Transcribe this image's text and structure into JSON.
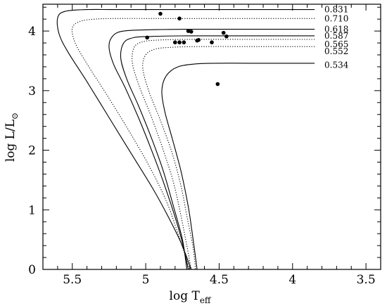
{
  "chart_data": {
    "type": "line",
    "xlabel": {
      "main": "log T",
      "sub": "eff"
    },
    "ylabel": {
      "main": "log L/L",
      "sub": "⊙"
    },
    "x_reversed": true,
    "xlim": [
      5.7,
      3.4
    ],
    "ylim": [
      0,
      4.45
    ],
    "x_ticks": [
      {
        "value": 5.5,
        "label": "5.5"
      },
      {
        "value": 5.0,
        "label": "5"
      },
      {
        "value": 4.5,
        "label": "4.5"
      },
      {
        "value": 4.0,
        "label": "4"
      },
      {
        "value": 3.5,
        "label": "3.5"
      }
    ],
    "y_ticks": [
      {
        "value": 0,
        "label": "0"
      },
      {
        "value": 1,
        "label": "1"
      },
      {
        "value": 2,
        "label": "2"
      },
      {
        "value": 3,
        "label": "3"
      },
      {
        "value": 4,
        "label": "4"
      }
    ],
    "series": [
      {
        "name": "0.831",
        "style": "solid",
        "points": [
          [
            3.85,
            4.36
          ],
          [
            4.3,
            4.36
          ],
          [
            4.8,
            4.36
          ],
          [
            5.2,
            4.36
          ],
          [
            5.4,
            4.36
          ],
          [
            5.55,
            4.33
          ],
          [
            5.6,
            4.22
          ],
          [
            5.59,
            3.95
          ],
          [
            5.53,
            3.65
          ],
          [
            5.4,
            3.15
          ],
          [
            5.25,
            2.55
          ],
          [
            5.1,
            1.95
          ],
          [
            4.95,
            1.35
          ],
          [
            4.85,
            0.9
          ],
          [
            4.76,
            0.45
          ],
          [
            4.69,
            0.0
          ]
        ]
      },
      {
        "name": "0.710",
        "style": "dotted",
        "points": [
          [
            3.85,
            4.21
          ],
          [
            4.3,
            4.21
          ],
          [
            4.8,
            4.21
          ],
          [
            5.2,
            4.21
          ],
          [
            5.35,
            4.2
          ],
          [
            5.45,
            4.16
          ],
          [
            5.5,
            4.05
          ],
          [
            5.48,
            3.8
          ],
          [
            5.4,
            3.45
          ],
          [
            5.27,
            2.95
          ],
          [
            5.12,
            2.35
          ],
          [
            4.98,
            1.75
          ],
          [
            4.86,
            1.15
          ],
          [
            4.78,
            0.6
          ],
          [
            4.7,
            0.0
          ]
        ]
      },
      {
        "name": "0.618",
        "style": "solid",
        "points": [
          [
            3.85,
            4.03
          ],
          [
            4.3,
            4.03
          ],
          [
            4.7,
            4.03
          ],
          [
            5.0,
            4.02
          ],
          [
            5.15,
            4.0
          ],
          [
            5.22,
            3.93
          ],
          [
            5.25,
            3.75
          ],
          [
            5.22,
            3.45
          ],
          [
            5.14,
            3.05
          ],
          [
            5.05,
            2.55
          ],
          [
            4.96,
            2.0
          ],
          [
            4.87,
            1.4
          ],
          [
            4.79,
            0.8
          ],
          [
            4.74,
            0.35
          ],
          [
            4.71,
            0.0
          ]
        ]
      },
      {
        "name": "0.587",
        "style": "solid",
        "points": [
          [
            3.85,
            3.92
          ],
          [
            4.3,
            3.92
          ],
          [
            4.7,
            3.92
          ],
          [
            4.95,
            3.91
          ],
          [
            5.08,
            3.89
          ],
          [
            5.15,
            3.8
          ],
          [
            5.17,
            3.55
          ],
          [
            5.13,
            3.2
          ],
          [
            5.05,
            2.75
          ],
          [
            4.96,
            2.2
          ],
          [
            4.88,
            1.65
          ],
          [
            4.81,
            1.05
          ],
          [
            4.75,
            0.5
          ],
          [
            4.72,
            0.0
          ]
        ]
      },
      {
        "name": "0.565",
        "style": "dotted",
        "points": [
          [
            3.85,
            3.86
          ],
          [
            4.3,
            3.86
          ],
          [
            4.7,
            3.86
          ],
          [
            4.9,
            3.85
          ],
          [
            5.02,
            3.82
          ],
          [
            5.08,
            3.72
          ],
          [
            5.09,
            3.45
          ],
          [
            5.04,
            3.05
          ],
          [
            4.96,
            2.55
          ],
          [
            4.88,
            2.0
          ],
          [
            4.81,
            1.45
          ],
          [
            4.76,
            0.9
          ],
          [
            4.72,
            0.4
          ],
          [
            4.69,
            0.0
          ]
        ]
      },
      {
        "name": "0.552",
        "style": "dotted",
        "points": [
          [
            3.85,
            3.74
          ],
          [
            4.3,
            3.74
          ],
          [
            4.6,
            3.74
          ],
          [
            4.8,
            3.73
          ],
          [
            4.93,
            3.7
          ],
          [
            5.0,
            3.6
          ],
          [
            5.02,
            3.38
          ],
          [
            4.98,
            3.0
          ],
          [
            4.9,
            2.5
          ],
          [
            4.82,
            1.95
          ],
          [
            4.76,
            1.4
          ],
          [
            4.72,
            0.9
          ],
          [
            4.68,
            0.4
          ],
          [
            4.66,
            0.0
          ]
        ]
      },
      {
        "name": "0.534",
        "style": "solid",
        "points": [
          [
            3.85,
            3.46
          ],
          [
            4.3,
            3.46
          ],
          [
            4.5,
            3.46
          ],
          [
            4.65,
            3.45
          ],
          [
            4.78,
            3.4
          ],
          [
            4.86,
            3.25
          ],
          [
            4.89,
            3.0
          ],
          [
            4.87,
            2.65
          ],
          [
            4.82,
            2.2
          ],
          [
            4.76,
            1.65
          ],
          [
            4.71,
            1.05
          ],
          [
            4.68,
            0.55
          ],
          [
            4.65,
            0.0
          ]
        ]
      }
    ],
    "stars": [
      [
        4.9,
        4.29
      ],
      [
        4.77,
        4.21
      ],
      [
        4.71,
        4.0
      ],
      [
        4.69,
        3.99
      ],
      [
        4.99,
        3.89
      ],
      [
        4.8,
        3.81
      ],
      [
        4.77,
        3.81
      ],
      [
        4.74,
        3.81
      ],
      [
        4.65,
        3.84
      ],
      [
        4.64,
        3.85
      ],
      [
        4.55,
        3.81
      ],
      [
        4.47,
        3.97
      ],
      [
        4.45,
        3.91
      ],
      [
        4.51,
        3.11
      ]
    ],
    "series_labels": [
      {
        "text": "0.831",
        "y": 4.36
      },
      {
        "text": "0.710",
        "y": 4.21
      },
      {
        "text": "0.618",
        "y": 4.03
      },
      {
        "text": "0.587",
        "y": 3.92
      },
      {
        "text": "0.565",
        "y": 3.78
      },
      {
        "text": "0.552",
        "y": 3.66
      },
      {
        "text": "0.534",
        "y": 3.43
      }
    ],
    "colors": {
      "line": "#000000",
      "axes": "#000000",
      "background": "#ffffff"
    }
  }
}
